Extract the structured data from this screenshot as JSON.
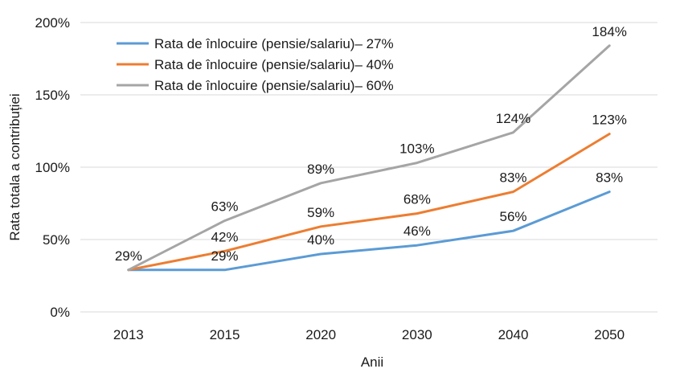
{
  "chart_data": {
    "type": "line",
    "categories": [
      "2013",
      "2015",
      "2020",
      "2030",
      "2040",
      "2050"
    ],
    "series": [
      {
        "name": "Rata de înlocuire (pensie/salariu)– 27%",
        "color": "#5b9bd5",
        "values": [
          29,
          29,
          40,
          46,
          56,
          83
        ],
        "labels": [
          "",
          "29%",
          "40%",
          "46%",
          "56%",
          "83%"
        ]
      },
      {
        "name": "Rata de înlocuire (pensie/salariu)– 40%",
        "color": "#ed7d31",
        "values": [
          29,
          42,
          59,
          68,
          83,
          123
        ],
        "labels": [
          "",
          "42%",
          "59%",
          "68%",
          "83%",
          "123%"
        ]
      },
      {
        "name": "Rata de înlocuire (pensie/salariu)– 60%",
        "color": "#a5a5a5",
        "values": [
          29,
          63,
          89,
          103,
          124,
          184
        ],
        "labels": [
          "29%",
          "63%",
          "89%",
          "103%",
          "124%",
          "184%"
        ]
      }
    ],
    "xlabel": "Anii",
    "ylabel": "Rata totala a contribuției",
    "ylim": [
      0,
      200
    ],
    "yticks": [
      0,
      50,
      100,
      150,
      200
    ],
    "ytick_labels": [
      "0%",
      "50%",
      "100%",
      "150%",
      "200%"
    ],
    "grid": true,
    "legend_position": "top-left"
  }
}
